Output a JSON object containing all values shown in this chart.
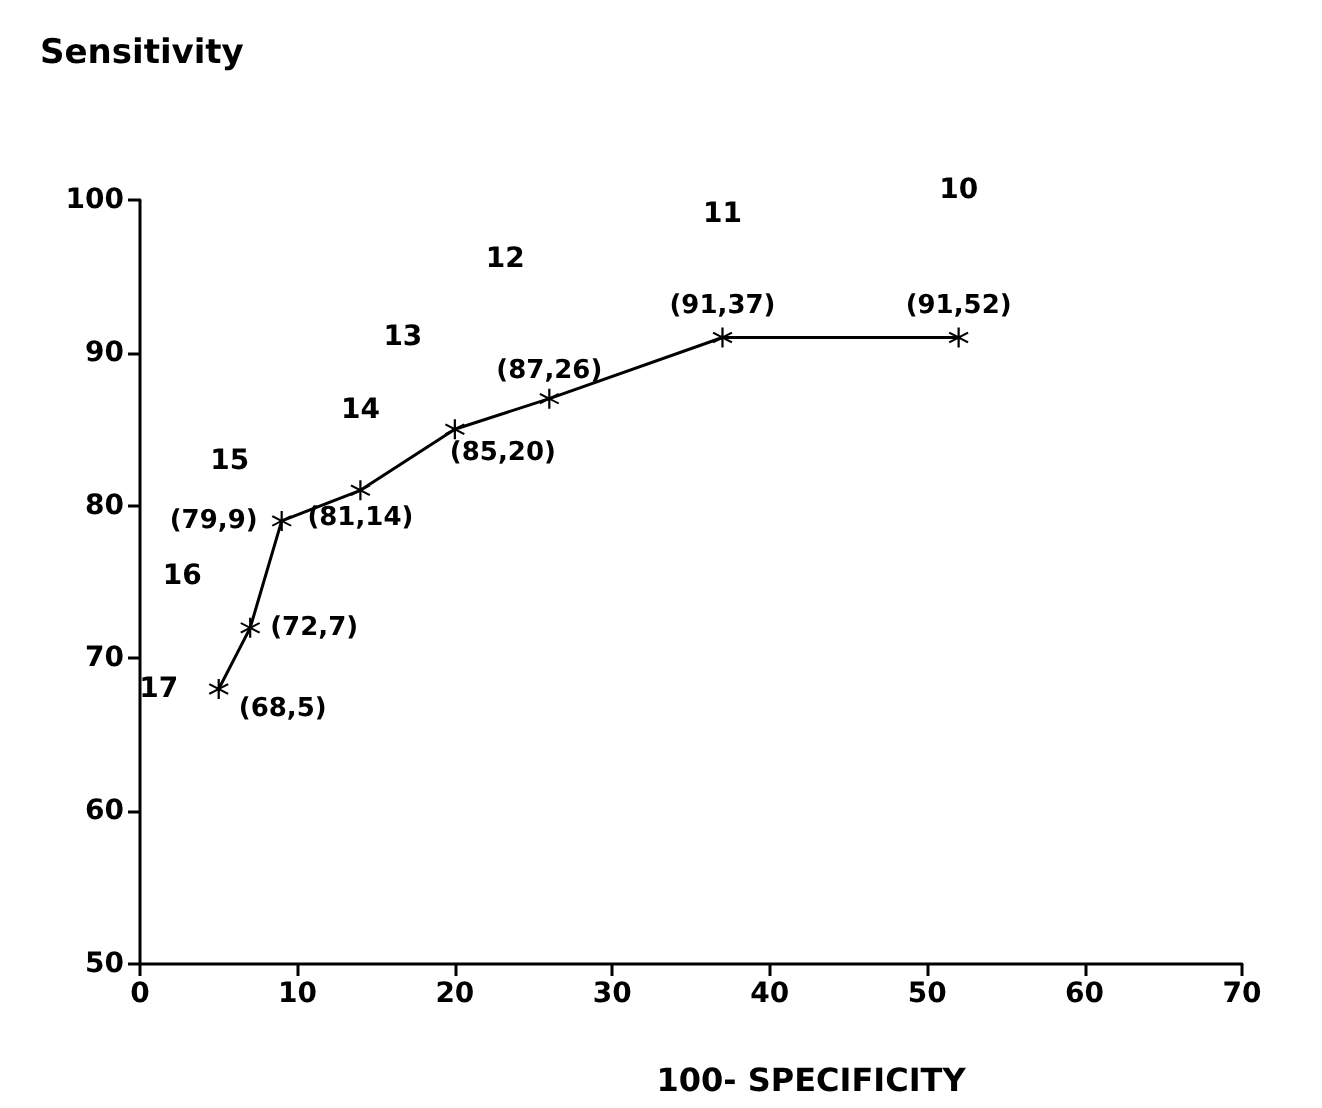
{
  "chart_data": {
    "type": "line",
    "xlabel": "100- SPECIFICITY",
    "ylabel": "Sensitivity",
    "x": [
      5,
      7,
      9,
      14,
      20,
      26,
      37,
      52
    ],
    "values": [
      68,
      72,
      79,
      81,
      85,
      87,
      91,
      91
    ],
    "color": "#000000",
    "marker": "cross",
    "line_style": "solid",
    "xlim": [
      0,
      70
    ],
    "xticks": [
      0,
      10,
      20,
      30,
      40,
      50,
      60,
      70
    ],
    "ylim": [
      50,
      100
    ],
    "yticks": [
      50,
      60,
      70,
      80,
      90,
      100
    ],
    "annotations": [
      {
        "text": "(68,5)",
        "x": 5,
        "y": 68
      },
      {
        "text": "(72,7)",
        "x": 7,
        "y": 72
      },
      {
        "text": "(79,9)",
        "x": 9,
        "y": 79
      },
      {
        "text": "(81,14)",
        "x": 14,
        "y": 81
      },
      {
        "text": "(85,20)",
        "x": 20,
        "y": 85
      },
      {
        "text": "(87,26)",
        "x": 26,
        "y": 87
      },
      {
        "text": "(91,37)",
        "x": 37,
        "y": 91
      },
      {
        "text": "(91,52)",
        "x": 52,
        "y": 91
      },
      "17",
      "16",
      "15",
      "14",
      "13",
      "12",
      "11",
      "10"
    ]
  }
}
